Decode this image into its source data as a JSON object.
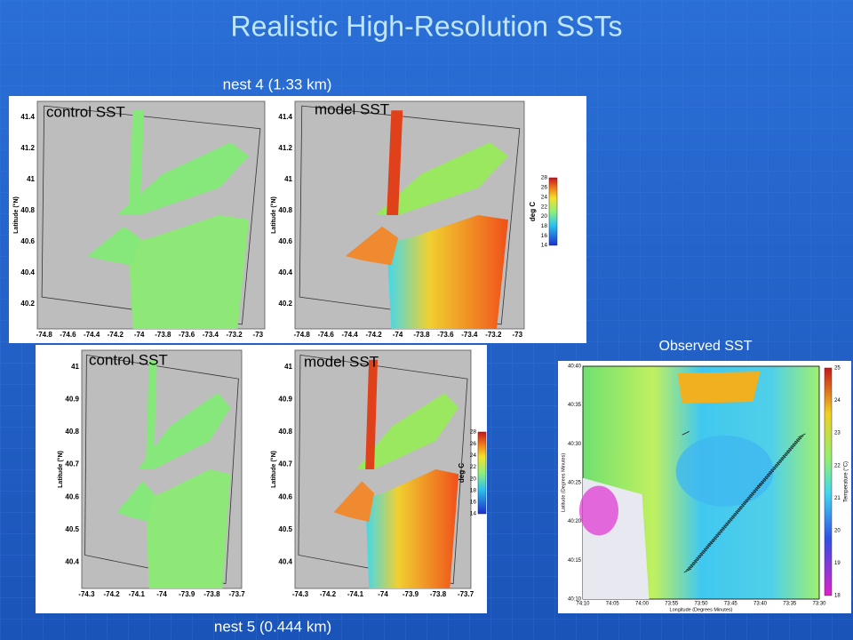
{
  "title": "Realistic High-Resolution  SSTs",
  "nest4_label": "nest 4 (1.33 km)",
  "nest5_label": "nest 5 (0.444 km)",
  "observed_label": "Observed SST",
  "panels": [
    {
      "label": "control SST",
      "ylabel": "Latitude (°N)",
      "lat_ticks": [
        "41.4",
        "41.2",
        "41",
        "40.8",
        "40.6",
        "40.4",
        "40.2"
      ],
      "lon_ticks": [
        "-74.8",
        "-74.6",
        "-74.4",
        "-74.2",
        "-74",
        "-73.8",
        "-73.6",
        "-73.4",
        "-73.2",
        "-73"
      ]
    },
    {
      "label": "model SST",
      "ylabel": "Latitude (°N)",
      "lat_ticks": [
        "41.4",
        "41.2",
        "41",
        "40.8",
        "40.6",
        "40.4",
        "40.2"
      ],
      "lon_ticks": [
        "-74.8",
        "-74.6",
        "-74.4",
        "-74.2",
        "-74",
        "-73.8",
        "-73.6",
        "-73.4",
        "-73.2",
        "-73"
      ]
    },
    {
      "label": "control SST",
      "ylabel": "Latitude (°N)",
      "lat_ticks": [
        "41",
        "40.9",
        "40.8",
        "40.7",
        "40.6",
        "40.5",
        "40.4"
      ],
      "lon_ticks": [
        "-74.3",
        "-74.2",
        "-74.1",
        "-74",
        "-73.9",
        "-73.8",
        "-73.7"
      ]
    },
    {
      "label": "model SST",
      "ylabel": "Latitude (°N)",
      "lat_ticks": [
        "41",
        "40.9",
        "40.8",
        "40.7",
        "40.6",
        "40.5",
        "40.4"
      ],
      "lon_ticks": [
        "-74.3",
        "-74.2",
        "-74.1",
        "-74",
        "-73.9",
        "-73.8",
        "-73.7"
      ]
    }
  ],
  "colorbars": [
    {
      "label": "deg C",
      "ticks": [
        "28",
        "26",
        "24",
        "22",
        "20",
        "18",
        "16",
        "14"
      ]
    },
    {
      "label": "deg C",
      "ticks": [
        "28",
        "26",
        "24",
        "22",
        "20",
        "18",
        "16",
        "14"
      ]
    }
  ],
  "observed": {
    "ylabel": "Latitude (Degrees Minutes)",
    "xlabel": "Longitude (Degrees Minutes)",
    "cbar_label": "Temperature (°C)",
    "lat_ticks": [
      "40:40",
      "40:35",
      "40:30",
      "40:25",
      "40:20",
      "40:15",
      "40:10"
    ],
    "lon_ticks": [
      "74:10",
      "74:05",
      "74:00",
      "73:55",
      "73:50",
      "73:45",
      "73:40",
      "73:35",
      "73:30"
    ],
    "cbar_ticks": [
      "25",
      "24",
      "23",
      "22",
      "21",
      "20",
      "19",
      "18"
    ]
  }
}
